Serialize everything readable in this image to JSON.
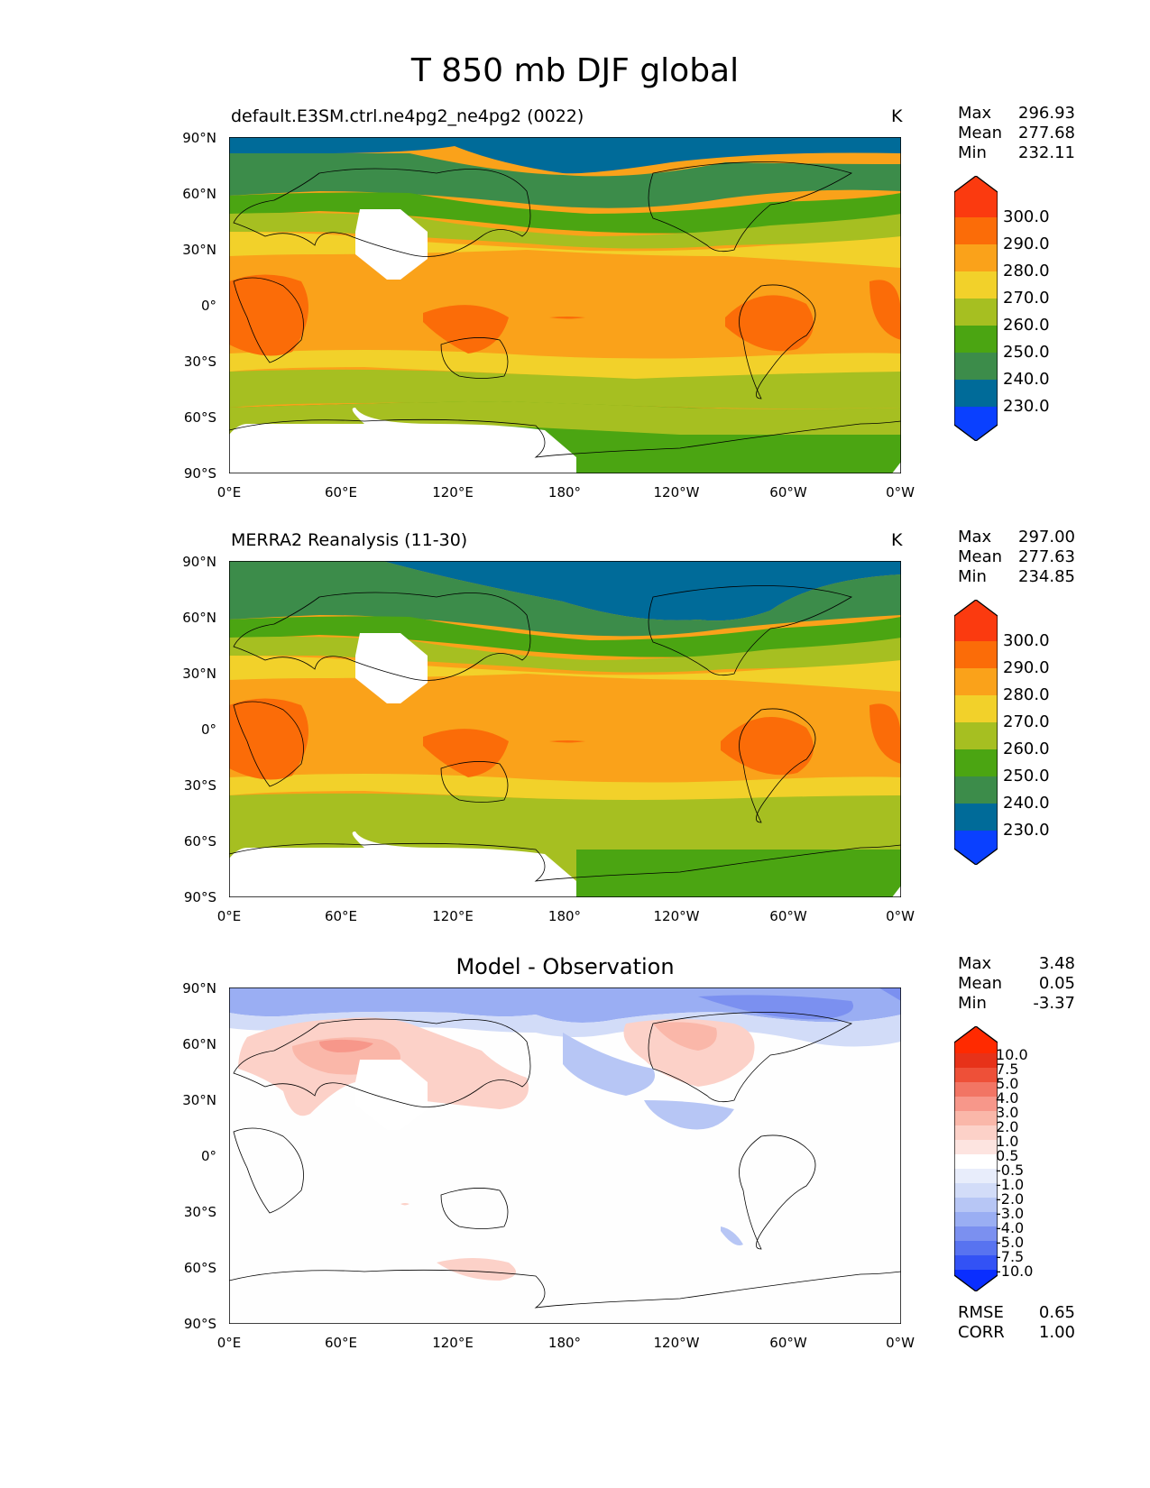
{
  "figure": {
    "title": "T 850 mb DJF global"
  },
  "axes": {
    "yticks": [
      "90°N",
      "60°N",
      "30°N",
      "0°",
      "30°S",
      "60°S",
      "90°S"
    ],
    "xticks": [
      "0°E",
      "60°E",
      "120°E",
      "180°",
      "120°W",
      "60°W",
      "0°W"
    ]
  },
  "panels": [
    {
      "subtitle": "default.E3SM.ctrl.ne4pg2_ne4pg2 (0022)",
      "units": "K",
      "stats": {
        "max_label": "Max",
        "max": "296.93",
        "mean_label": "Mean",
        "mean": "277.68",
        "min_label": "Min",
        "min": "232.11"
      },
      "colorbar": {
        "labels": [
          "300.0",
          "290.0",
          "280.0",
          "270.0",
          "260.0",
          "250.0",
          "240.0",
          "230.0"
        ]
      }
    },
    {
      "subtitle": "MERRA2 Reanalysis (11-30)",
      "units": "K",
      "stats": {
        "max_label": "Max",
        "max": "297.00",
        "mean_label": "Mean",
        "mean": "277.63",
        "min_label": "Min",
        "min": "234.85"
      },
      "colorbar": {
        "labels": [
          "300.0",
          "290.0",
          "280.0",
          "270.0",
          "260.0",
          "250.0",
          "240.0",
          "230.0"
        ]
      }
    },
    {
      "title": "Model - Observation",
      "stats": {
        "max_label": "Max",
        "max": "3.48",
        "mean_label": "Mean",
        "mean": "0.05",
        "min_label": "Min",
        "min": "-3.37"
      },
      "colorbar": {
        "labels": [
          "10.0",
          "7.5",
          "5.0",
          "4.0",
          "3.0",
          "2.0",
          "1.0",
          "0.5",
          "-0.5",
          "-1.0",
          "-2.0",
          "-3.0",
          "-4.0",
          "-5.0",
          "-7.5",
          "-10.0"
        ]
      },
      "metrics": {
        "rmse_label": "RMSE",
        "rmse": "0.65",
        "corr_label": "CORR",
        "corr": "1.00"
      }
    }
  ],
  "colors": {
    "temp_palette": [
      "#0a40ff",
      "#006b99",
      "#3c8c4a",
      "#4ba512",
      "#a6bf21",
      "#f2d12a",
      "#faa21a",
      "#fb6c08",
      "#fb3a0f"
    ],
    "diff_palette": [
      "#0a2eff",
      "#3352f5",
      "#5873f0",
      "#7b90f0",
      "#9aaef3",
      "#b7c6f5",
      "#d2dcf8",
      "#e8edfb",
      "#ffffff",
      "#fde4e0",
      "#fcd1c8",
      "#fab7a9",
      "#f7978a",
      "#f27564",
      "#ee5038",
      "#e73219",
      "#ff2a00"
    ],
    "land_outline": "#000000"
  }
}
